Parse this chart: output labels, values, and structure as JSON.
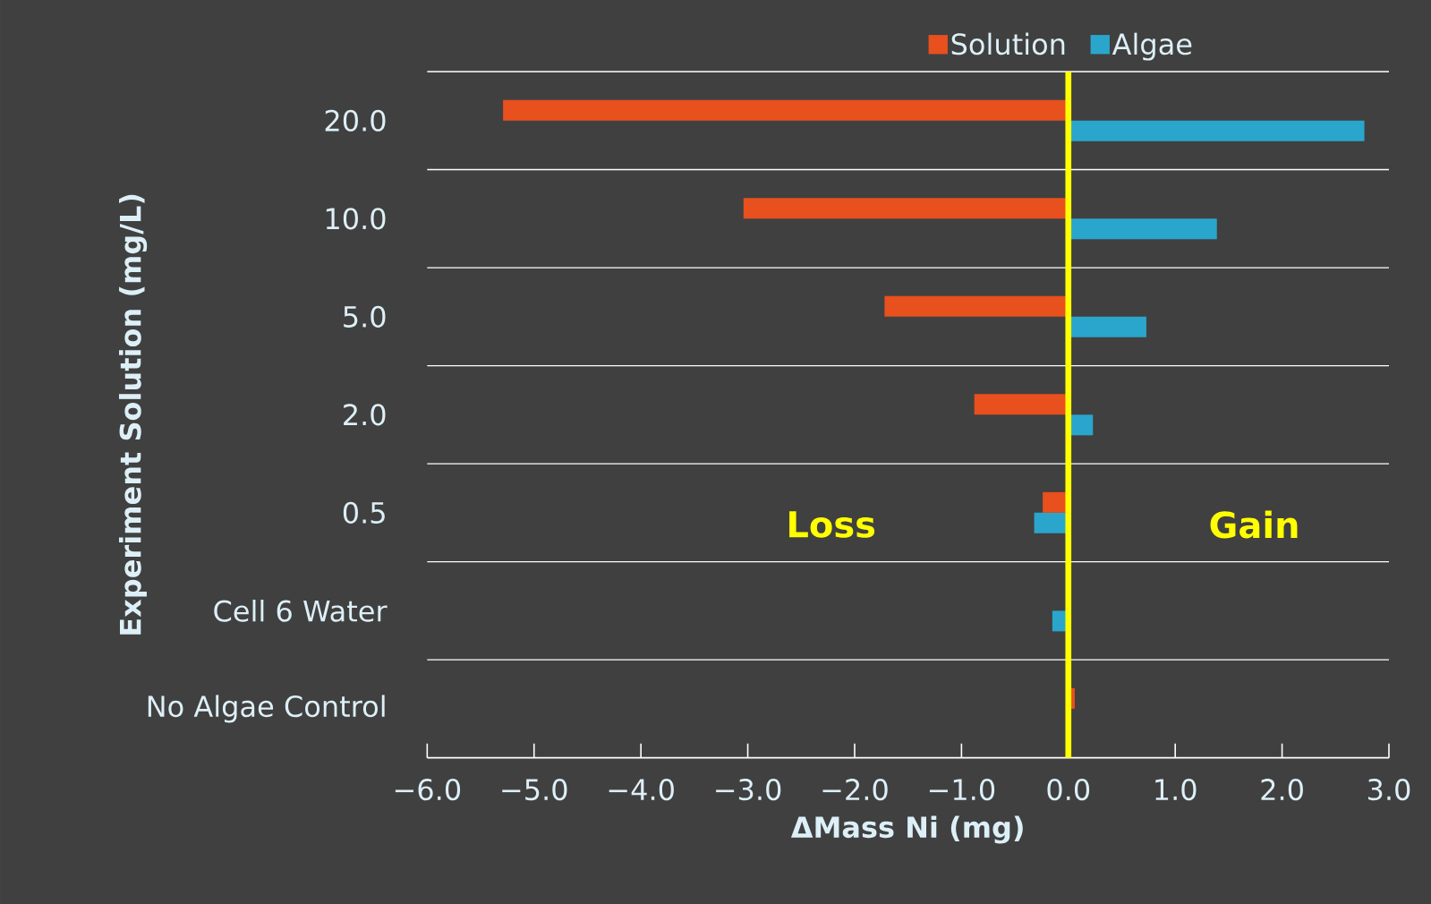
{
  "chart_data": {
    "type": "bar",
    "orientation": "horizontal",
    "categories": [
      "20.0",
      "10.0",
      "5.0",
      "2.0",
      "0.5",
      "Cell 6 Water",
      "No Algae Control"
    ],
    "series": [
      {
        "name": "Solution",
        "color": "#e8501e",
        "values": [
          -5.29,
          -3.04,
          -1.72,
          -0.88,
          -0.24,
          null,
          0.06
        ]
      },
      {
        "name": "Algae",
        "color": "#2aa6cc",
        "values": [
          2.77,
          1.39,
          0.73,
          0.23,
          -0.32,
          -0.15,
          null
        ]
      }
    ],
    "xlabel": "ΔMass Ni (mg)",
    "ylabel": "Experiment Solution (mg/L)",
    "xlim": [
      -6,
      3
    ],
    "xticks": [
      {
        "value": -6,
        "label": "−6.0"
      },
      {
        "value": -5,
        "label": "−5.0"
      },
      {
        "value": -4,
        "label": "−4.0"
      },
      {
        "value": -3,
        "label": "−3.0"
      },
      {
        "value": -2,
        "label": "−2.0"
      },
      {
        "value": -1,
        "label": "−1.0"
      },
      {
        "value": 0,
        "label": "0.0"
      },
      {
        "value": 1,
        "label": "1.0"
      },
      {
        "value": 2,
        "label": "2.0"
      },
      {
        "value": 3,
        "label": "3.0"
      }
    ],
    "ref_lines": [
      {
        "axis": "x",
        "value": 0,
        "color": "#ffff00"
      }
    ],
    "annotations": [
      "Loss",
      "Gain"
    ],
    "legend": "top"
  }
}
